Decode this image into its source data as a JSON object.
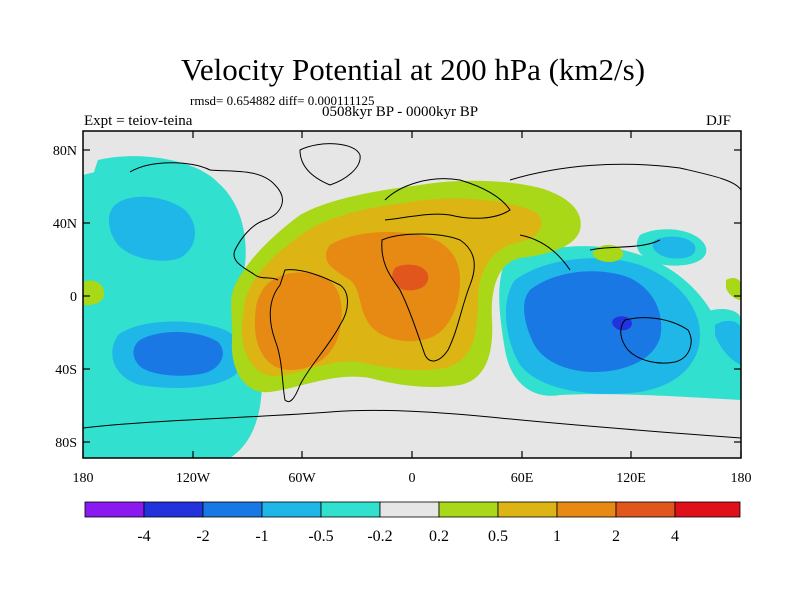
{
  "title": "Velocity Potential at 200 hPa (km2/s)",
  "stats": "rmsd= 0.654882 diff= 0.000111125",
  "period": "0508kyr BP - 0000kyr BP",
  "experiment": "Expt = teiov-teina",
  "season": "DJF",
  "map": {
    "lat_labels": [
      "80N",
      "40N",
      "0",
      "40S",
      "80S"
    ],
    "lon_labels": [
      "180",
      "120W",
      "60W",
      "0",
      "60E",
      "120E",
      "180"
    ],
    "land_color": "#e6e6e6"
  },
  "colorbar": {
    "colors": [
      "#8a1af0",
      "#2233dd",
      "#1a78e4",
      "#1fb7e8",
      "#31e0cf",
      "#e6e6e6",
      "#a8d818",
      "#dcb414",
      "#e68a14",
      "#e0561c",
      "#e0101a"
    ],
    "labels": [
      "-4",
      "-2",
      "-1",
      "-0.5",
      "-0.2",
      "0.2",
      "0.5",
      "1",
      "2",
      "4"
    ]
  }
}
